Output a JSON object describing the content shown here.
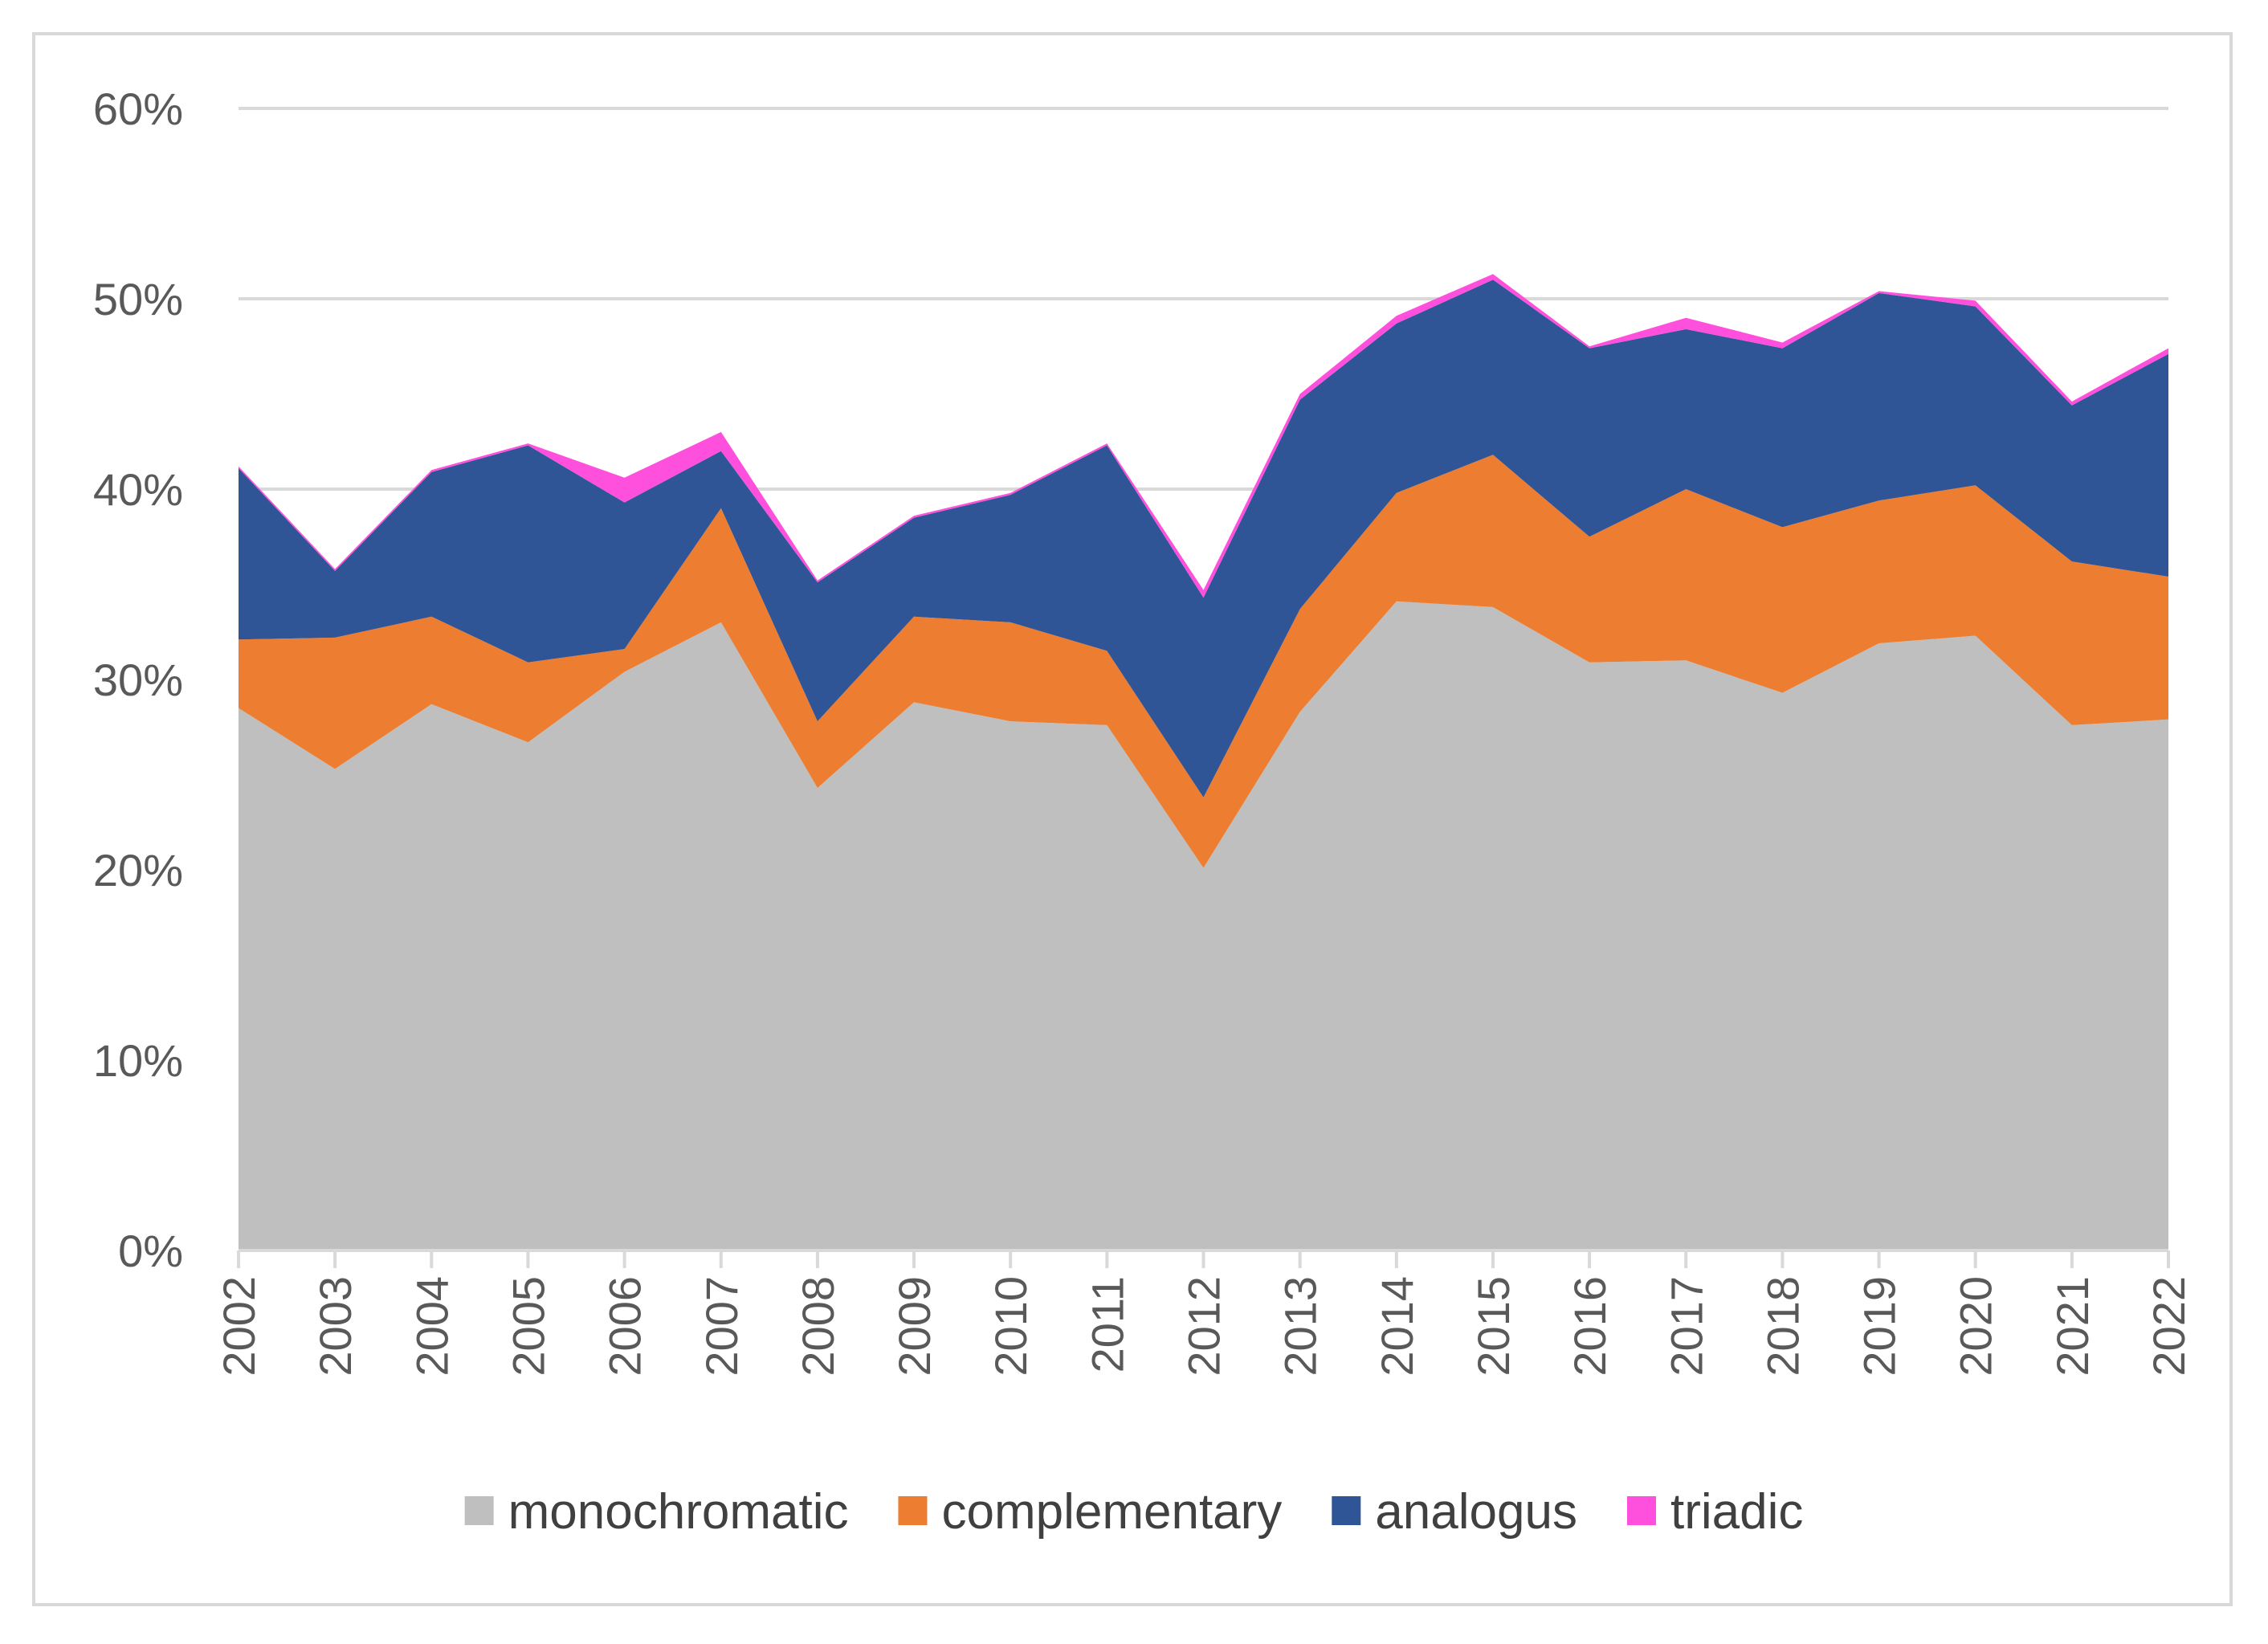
{
  "chart_data": {
    "type": "area",
    "stacked": true,
    "title": "",
    "xlabel": "",
    "ylabel": "",
    "ylim": [
      0,
      0.6
    ],
    "y_ticks": [
      0,
      0.1,
      0.2,
      0.3,
      0.4,
      0.5,
      0.6
    ],
    "y_tick_labels": [
      "0%",
      "10%",
      "20%",
      "30%",
      "40%",
      "50%",
      "60%"
    ],
    "categories": [
      "2002",
      "2003",
      "2004",
      "2005",
      "2006",
      "2007",
      "2008",
      "2009",
      "2010",
      "2011",
      "2012",
      "2013",
      "2014",
      "2015",
      "2016",
      "2017",
      "2018",
      "2019",
      "2020",
      "2021",
      "2022"
    ],
    "grid": true,
    "legend_position": "bottom",
    "series": [
      {
        "name": "monochromatic",
        "color": "#bfbfbf",
        "values": [
          0.285,
          0.253,
          0.287,
          0.267,
          0.304,
          0.33,
          0.243,
          0.288,
          0.278,
          0.276,
          0.201,
          0.283,
          0.341,
          0.338,
          0.309,
          0.31,
          0.293,
          0.319,
          0.323,
          0.276,
          0.279
        ]
      },
      {
        "name": "complementary",
        "color": "#ed7d31",
        "values": [
          0.036,
          0.069,
          0.046,
          0.042,
          0.012,
          0.06,
          0.035,
          0.045,
          0.052,
          0.039,
          0.037,
          0.054,
          0.057,
          0.08,
          0.066,
          0.09,
          0.087,
          0.075,
          0.079,
          0.086,
          0.075
        ]
      },
      {
        "name": "analogus",
        "color": "#2f5597",
        "values": [
          0.09,
          0.035,
          0.076,
          0.114,
          0.077,
          0.03,
          0.073,
          0.052,
          0.067,
          0.108,
          0.105,
          0.11,
          0.089,
          0.092,
          0.099,
          0.084,
          0.094,
          0.109,
          0.094,
          0.082,
          0.117
        ]
      },
      {
        "name": "triadic",
        "color": "#ff4fdd",
        "values": [
          0.001,
          0.001,
          0.001,
          0.001,
          0.013,
          0.01,
          0.001,
          0.001,
          0.001,
          0.001,
          0.004,
          0.003,
          0.004,
          0.003,
          0.001,
          0.006,
          0.003,
          0.001,
          0.003,
          0.002,
          0.003
        ]
      }
    ]
  }
}
